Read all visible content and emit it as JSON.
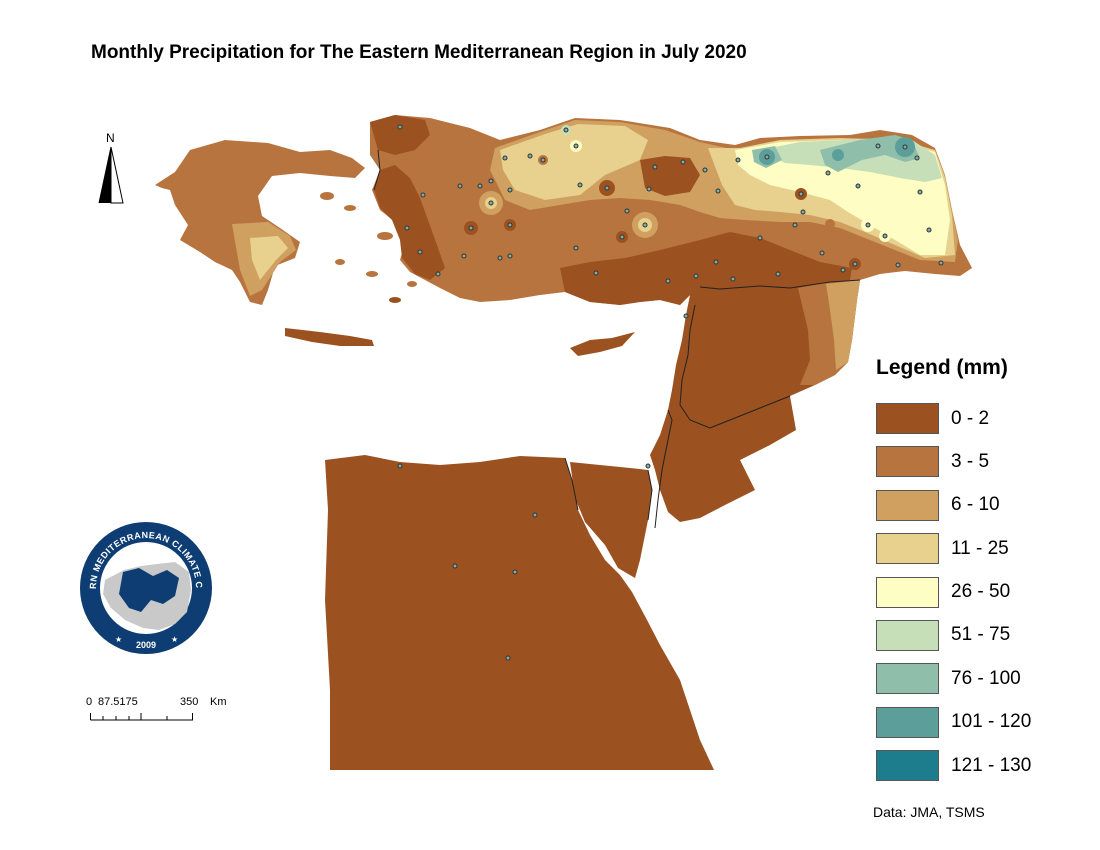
{
  "title": "Monthly Precipitation for The Eastern Mediterranean Region in July 2020",
  "legend": {
    "title": "Legend (mm)",
    "classes": [
      {
        "label": "0 - 2",
        "color": "#9b5220"
      },
      {
        "label": "3 - 5",
        "color": "#b8743e"
      },
      {
        "label": "6 - 10",
        "color": "#cfa060"
      },
      {
        "label": "11 - 25",
        "color": "#e8d08e"
      },
      {
        "label": "26 - 50",
        "color": "#fdfdc4"
      },
      {
        "label": "51 - 75",
        "color": "#c6dfb8"
      },
      {
        "label": "76 - 100",
        "color": "#8fbfab"
      },
      {
        "label": "101 - 120",
        "color": "#5c9e9a"
      },
      {
        "label": "121 - 130",
        "color": "#1e7d8c"
      }
    ]
  },
  "north_arrow": {
    "letter": "N"
  },
  "scale_bar": {
    "labels": [
      "0",
      "87.5175",
      "350",
      "Km"
    ]
  },
  "logo": {
    "ring_text": "EASTERN MEDITERRANEAN CLIMATE CENTRE",
    "year": "2009",
    "colors": {
      "navy": "#0d3d73",
      "land": "#c9c9c9"
    }
  },
  "credit": "Data: JMA, TSMS",
  "border_color": "#222222"
}
